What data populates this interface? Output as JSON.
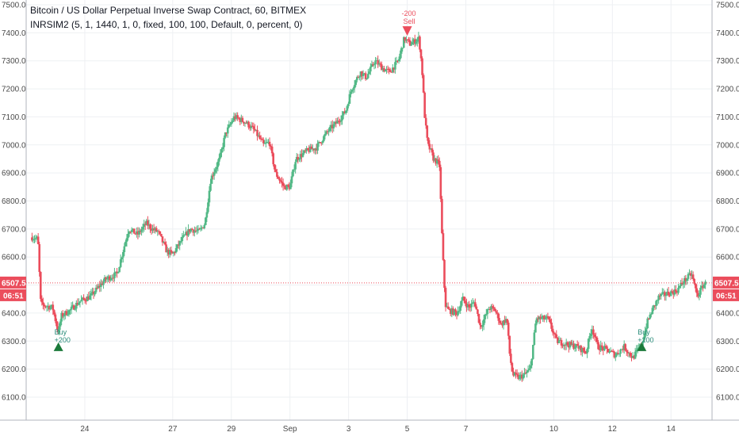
{
  "header": {
    "title": "Bitcoin / US Dollar Perpetual Inverse Swap Contract, 60, BITMEX",
    "indicator": "INRSIM2 (5, 1, 1440, 1, 0, fixed, 100, 100, Default, 0, percent, 0)"
  },
  "price_tag": {
    "price": "6507.5",
    "countdown": "06:51"
  },
  "colors": {
    "up": "#53b987",
    "down": "#eb4d5c",
    "buy_marker": "#1b7a3a",
    "sell_marker": "#eb4d5c",
    "label_bg": "#eb4d5c"
  },
  "chart_data": {
    "type": "candlestick",
    "title": "Bitcoin / US Dollar Perpetual Inverse Swap Contract, 60, BITMEX",
    "xlabel": "",
    "ylabel": "",
    "ylim": [
      6050,
      7510
    ],
    "y_ticks": [
      "6100.0",
      "6200.0",
      "6300.0",
      "6400.0",
      "6500.0",
      "6600.0",
      "6700.0",
      "6800.0",
      "6900.0",
      "7000.0",
      "7100.0",
      "7200.0",
      "7300.0",
      "7400.0",
      "7500.0"
    ],
    "x_ticks": [
      {
        "label": "24",
        "x": 24
      },
      {
        "label": "27",
        "x": 27
      },
      {
        "label": "29",
        "x": 29
      },
      {
        "label": "Sep",
        "x": 31
      },
      {
        "label": "3",
        "x": 33
      },
      {
        "label": "5",
        "x": 35
      },
      {
        "label": "7",
        "x": 37
      },
      {
        "label": "10",
        "x": 40
      },
      {
        "label": "12",
        "x": 42
      },
      {
        "label": "14",
        "x": 44
      }
    ],
    "grid": true,
    "signals": [
      {
        "type": "buy",
        "x": 23.1,
        "price": 6290,
        "label": "Buy",
        "qty": "+200"
      },
      {
        "type": "sell",
        "x": 35.0,
        "price": 7395,
        "label": "Sell",
        "qty": "-200"
      },
      {
        "type": "buy",
        "x": 43.0,
        "price": 6290,
        "label": "Buy",
        "qty": "+200"
      }
    ],
    "anchors": [
      [
        22.2,
        6670
      ],
      [
        22.4,
        6665
      ],
      [
        22.5,
        6430
      ],
      [
        22.9,
        6420
      ],
      [
        23.1,
        6330
      ],
      [
        23.2,
        6390
      ],
      [
        23.5,
        6410
      ],
      [
        23.8,
        6440
      ],
      [
        24.2,
        6460
      ],
      [
        24.7,
        6520
      ],
      [
        25.1,
        6540
      ],
      [
        25.3,
        6620
      ],
      [
        25.5,
        6700
      ],
      [
        25.8,
        6680
      ],
      [
        26.1,
        6720
      ],
      [
        26.3,
        6700
      ],
      [
        26.5,
        6690
      ],
      [
        26.8,
        6620
      ],
      [
        27.0,
        6610
      ],
      [
        27.3,
        6660
      ],
      [
        27.6,
        6700
      ],
      [
        27.9,
        6690
      ],
      [
        28.1,
        6720
      ],
      [
        28.3,
        6880
      ],
      [
        28.6,
        6950
      ],
      [
        28.8,
        7040
      ],
      [
        29.1,
        7100
      ],
      [
        29.5,
        7080
      ],
      [
        29.8,
        7050
      ],
      [
        30.1,
        7000
      ],
      [
        30.3,
        7010
      ],
      [
        30.5,
        6900
      ],
      [
        30.8,
        6850
      ],
      [
        31.0,
        6850
      ],
      [
        31.2,
        6950
      ],
      [
        31.6,
        6980
      ],
      [
        31.9,
        6990
      ],
      [
        32.3,
        7050
      ],
      [
        32.6,
        7080
      ],
      [
        32.9,
        7120
      ],
      [
        33.1,
        7200
      ],
      [
        33.4,
        7260
      ],
      [
        33.6,
        7240
      ],
      [
        33.9,
        7300
      ],
      [
        34.2,
        7270
      ],
      [
        34.4,
        7260
      ],
      [
        34.7,
        7300
      ],
      [
        34.9,
        7380
      ],
      [
        35.1,
        7360
      ],
      [
        35.4,
        7380
      ],
      [
        35.5,
        7280
      ],
      [
        35.6,
        7100
      ],
      [
        35.7,
        7000
      ],
      [
        35.8,
        6980
      ],
      [
        35.9,
        6950
      ],
      [
        36.1,
        6930
      ],
      [
        36.2,
        6640
      ],
      [
        36.3,
        6430
      ],
      [
        36.4,
        6410
      ],
      [
        36.7,
        6400
      ],
      [
        36.9,
        6450
      ],
      [
        37.1,
        6420
      ],
      [
        37.3,
        6440
      ],
      [
        37.5,
        6350
      ],
      [
        37.8,
        6420
      ],
      [
        38.0,
        6410
      ],
      [
        38.2,
        6360
      ],
      [
        38.4,
        6380
      ],
      [
        38.5,
        6250
      ],
      [
        38.6,
        6180
      ],
      [
        38.8,
        6170
      ],
      [
        39.0,
        6180
      ],
      [
        39.2,
        6200
      ],
      [
        39.4,
        6380
      ],
      [
        39.8,
        6380
      ],
      [
        40.1,
        6300
      ],
      [
        40.4,
        6290
      ],
      [
        40.8,
        6280
      ],
      [
        41.1,
        6260
      ],
      [
        41.3,
        6350
      ],
      [
        41.5,
        6280
      ],
      [
        41.8,
        6270
      ],
      [
        42.1,
        6250
      ],
      [
        42.4,
        6280
      ],
      [
        42.7,
        6240
      ],
      [
        43.0,
        6290
      ],
      [
        43.2,
        6370
      ],
      [
        43.4,
        6420
      ],
      [
        43.6,
        6460
      ],
      [
        43.9,
        6470
      ],
      [
        44.2,
        6480
      ],
      [
        44.4,
        6510
      ],
      [
        44.7,
        6540
      ],
      [
        44.9,
        6460
      ],
      [
        45.1,
        6500
      ],
      [
        45.2,
        6507.5
      ]
    ]
  }
}
